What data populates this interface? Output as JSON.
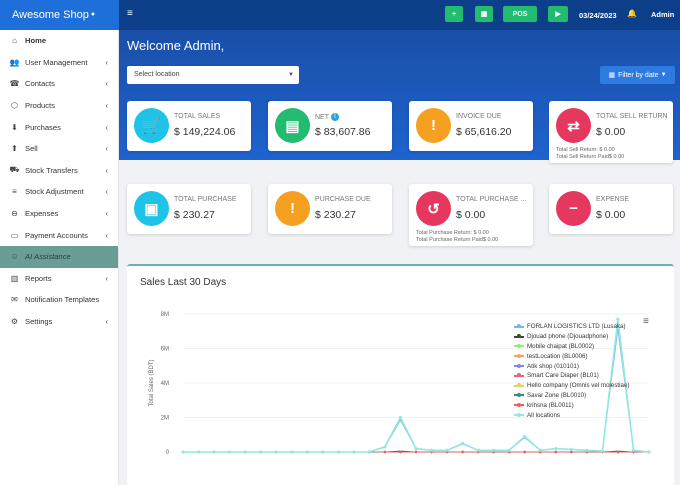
{
  "brand": {
    "name": "Awesome Shop"
  },
  "topbar": {
    "buttons": [
      "+",
      "▦",
      "POS",
      "▶"
    ],
    "date": "03/24/2023",
    "user": "Admin"
  },
  "sidebar": {
    "items": [
      {
        "label": "Home",
        "icon": "home-icon",
        "glyph": "⌂",
        "chev": false
      },
      {
        "label": "User Management",
        "icon": "users-icon",
        "glyph": "👥",
        "chev": true
      },
      {
        "label": "Contacts",
        "icon": "contacts-icon",
        "glyph": "☎",
        "chev": true
      },
      {
        "label": "Products",
        "icon": "cubes-icon",
        "glyph": "⬡",
        "chev": true
      },
      {
        "label": "Purchases",
        "icon": "arrow-circle-down-icon",
        "glyph": "⬇",
        "chev": true
      },
      {
        "label": "Sell",
        "icon": "arrow-circle-up-icon",
        "glyph": "⬆",
        "chev": true
      },
      {
        "label": "Stock Transfers",
        "icon": "truck-icon",
        "glyph": "⛟",
        "chev": true
      },
      {
        "label": "Stock Adjustment",
        "icon": "database-icon",
        "glyph": "≡",
        "chev": true
      },
      {
        "label": "Expenses",
        "icon": "minus-circle-icon",
        "glyph": "⊖",
        "chev": true
      },
      {
        "label": "Payment Accounts",
        "icon": "money-icon",
        "glyph": "▭",
        "chev": true
      },
      {
        "label": "AI Assistance",
        "icon": "robot-icon",
        "glyph": "☺",
        "chev": false
      },
      {
        "label": "Reports",
        "icon": "bar-chart-icon",
        "glyph": "▥",
        "chev": true
      },
      {
        "label": "Notification Templates",
        "icon": "envelope-icon",
        "glyph": "✉",
        "chev": false
      },
      {
        "label": "Settings",
        "icon": "gear-icon",
        "glyph": "⚙",
        "chev": true
      }
    ]
  },
  "hero": {
    "welcome": "Welcome Admin,",
    "location_placeholder": "Select location",
    "filter_label": "Filter by date"
  },
  "cards": [
    {
      "label": "TOTAL SALES",
      "value": "$ 149,224.06",
      "color": "#1fc3e8",
      "icon": "cart-icon",
      "glyph": "🛒",
      "info": false,
      "subs": []
    },
    {
      "label": "NET",
      "value": "$ 83,607.86",
      "color": "#22bb70",
      "icon": "invoice-icon",
      "glyph": "▤",
      "info": true,
      "subs": []
    },
    {
      "label": "INVOICE DUE",
      "value": "$ 65,616.20",
      "color": "#f5a020",
      "icon": "file-warning-icon",
      "glyph": "!",
      "info": false,
      "subs": []
    },
    {
      "label": "TOTAL SELL RETURN",
      "value": "$ 0.00",
      "color": "#e6385f",
      "icon": "exchange-icon",
      "glyph": "⇄",
      "info": false,
      "subs": [
        "Total Sell Return: $ 0.00",
        "Total Sell Return Paid$ 0.00"
      ]
    },
    {
      "label": "TOTAL PURCHASE",
      "value": "$ 230.27",
      "color": "#1fc3e8",
      "icon": "money-bill-icon",
      "glyph": "▣",
      "info": false,
      "subs": []
    },
    {
      "label": "PURCHASE DUE",
      "value": "$ 230.27",
      "color": "#f5a020",
      "icon": "exclamation-icon",
      "glyph": "!",
      "info": false,
      "subs": []
    },
    {
      "label": "TOTAL PURCHASE ...",
      "value": "$ 0.00",
      "color": "#e6385f",
      "icon": "undo-icon",
      "glyph": "↺",
      "info": false,
      "subs": [
        "Total Purchase Return: $ 0.00",
        "Total Purchase Return Paid$ 0.00"
      ]
    },
    {
      "label": "EXPENSE",
      "value": "$ 0.00",
      "color": "#e6385f",
      "icon": "minus-circle-icon",
      "glyph": "−",
      "info": false,
      "subs": []
    }
  ],
  "chart_panel": {
    "title": "Sales Last 30 Days"
  },
  "chart_data": {
    "type": "line",
    "ylabel": "Total Sales (BDT)",
    "ylim": [
      0,
      8000000
    ],
    "yticks": [
      "0",
      "2M",
      "4M",
      "6M",
      "8M"
    ],
    "series": [
      {
        "name": "FORLAN LOGISTICS LTD (Lusaka)",
        "color": "#7cb5ec"
      },
      {
        "name": "Djouad phone (Djouadphone)",
        "color": "#434348"
      },
      {
        "name": "Mobile chaipat (BL0002)",
        "color": "#90ed7d"
      },
      {
        "name": "testLocation (BL0006)",
        "color": "#f7a35c"
      },
      {
        "name": "Atik shop (010101)",
        "color": "#8085e9"
      },
      {
        "name": "Smart Care Diaper (BL01)",
        "color": "#f15c80"
      },
      {
        "name": "Hello company (Omnis vel molestiae)",
        "color": "#e4d354"
      },
      {
        "name": "Savar Zone (BL0010)",
        "color": "#2b908f"
      },
      {
        "name": "krihsna (BL0011)",
        "color": "#f45b5b"
      },
      {
        "name": "All locations",
        "color": "#91e8e1",
        "values": [
          0,
          0,
          0,
          0,
          0,
          0,
          0,
          0,
          0,
          0,
          0,
          0,
          0,
          300000,
          2000000,
          200000,
          100000,
          100000,
          500000,
          100000,
          100000,
          100000,
          900000,
          100000,
          200000,
          150000,
          100000,
          50000,
          7700000,
          100000,
          0
        ]
      }
    ]
  }
}
